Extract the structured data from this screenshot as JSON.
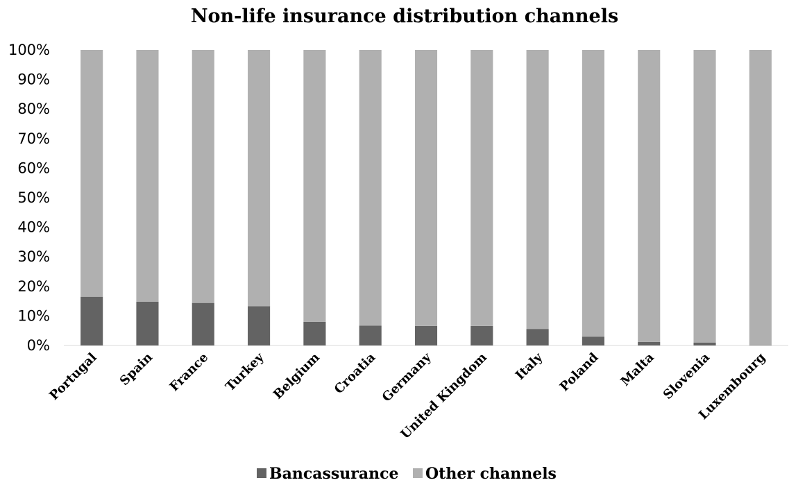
{
  "chart_data": {
    "type": "bar",
    "stacked": true,
    "title": "Non-life insurance distribution channels",
    "xlabel": "",
    "ylabel": "",
    "ylim": [
      0,
      100
    ],
    "y_ticks": [
      "0%",
      "10%",
      "20%",
      "30%",
      "40%",
      "50%",
      "60%",
      "70%",
      "80%",
      "90%",
      "100%"
    ],
    "grid": false,
    "legend_position": "bottom",
    "categories": [
      "Portugal",
      "Spain",
      "France",
      "Turkey",
      "Belgium",
      "Croatia",
      "Germany",
      "United Kingdom",
      "Italy",
      "Poland",
      "Malta",
      "Slovenia",
      "Luxembourg"
    ],
    "series": [
      {
        "name": "Bancassurance",
        "color": "#636363",
        "values": [
          16.5,
          14.8,
          14.4,
          13.3,
          8.0,
          6.7,
          6.6,
          6.6,
          5.6,
          3.0,
          1.2,
          1.0,
          0.1
        ]
      },
      {
        "name": "Other channels",
        "color": "#b0b0b0",
        "values": [
          83.5,
          85.2,
          85.6,
          86.7,
          92.0,
          93.3,
          93.4,
          93.4,
          94.4,
          97.0,
          98.8,
          99.0,
          99.9
        ]
      }
    ]
  }
}
